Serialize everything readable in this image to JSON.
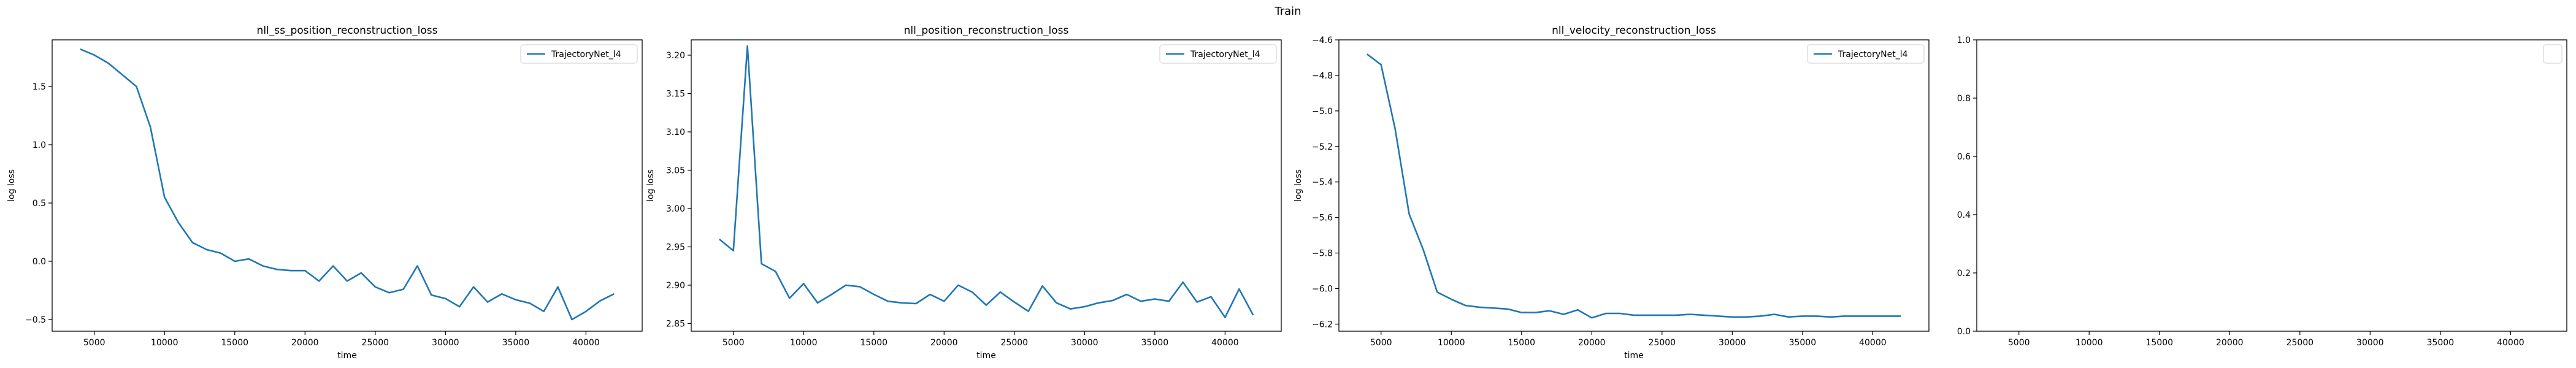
{
  "suptitle": "Train",
  "colors": {
    "series": "#1f77b4",
    "axes": "#000000",
    "legend_frame": "#cccccc"
  },
  "chart_data": [
    {
      "type": "line",
      "title": "nll_ss_position_reconstruction_loss",
      "xlabel": "time",
      "ylabel": "log loss",
      "xlim": [
        2000,
        44000
      ],
      "ylim": [
        -0.6,
        1.9
      ],
      "xticks": [
        5000,
        10000,
        15000,
        20000,
        25000,
        30000,
        35000,
        40000
      ],
      "xtick_labels": [
        "5000",
        "10000",
        "15000",
        "20000",
        "25000",
        "30000",
        "35000",
        "40000"
      ],
      "yticks": [
        -0.5,
        0.0,
        0.5,
        1.0,
        1.5
      ],
      "ytick_labels": [
        "−0.5",
        "0.0",
        "0.5",
        "1.0",
        "1.5"
      ],
      "grid": false,
      "legend_position": "top-right",
      "series": [
        {
          "name": "TrajectoryNet_l4",
          "x": [
            4000,
            5000,
            6000,
            7000,
            8000,
            9000,
            10000,
            11000,
            12000,
            13000,
            14000,
            15000,
            16000,
            17000,
            18000,
            19000,
            20000,
            21000,
            22000,
            23000,
            24000,
            25000,
            26000,
            27000,
            28000,
            29000,
            30000,
            31000,
            32000,
            33000,
            34000,
            35000,
            36000,
            37000,
            38000,
            39000,
            40000,
            41000,
            42000
          ],
          "y": [
            1.82,
            1.77,
            1.7,
            1.6,
            1.5,
            1.15,
            0.55,
            0.33,
            0.16,
            0.1,
            0.07,
            0.0,
            0.02,
            -0.04,
            -0.07,
            -0.08,
            -0.08,
            -0.17,
            -0.04,
            -0.17,
            -0.1,
            -0.22,
            -0.27,
            -0.24,
            -0.04,
            -0.29,
            -0.32,
            -0.39,
            -0.22,
            -0.35,
            -0.28,
            -0.33,
            -0.36,
            -0.43,
            -0.22,
            -0.5,
            -0.43,
            -0.34,
            -0.28
          ]
        }
      ]
    },
    {
      "type": "line",
      "title": "nll_position_reconstruction_loss",
      "xlabel": "time",
      "ylabel": "log loss",
      "xlim": [
        2000,
        44000
      ],
      "ylim": [
        2.84,
        3.22
      ],
      "xticks": [
        5000,
        10000,
        15000,
        20000,
        25000,
        30000,
        35000,
        40000
      ],
      "xtick_labels": [
        "5000",
        "10000",
        "15000",
        "20000",
        "25000",
        "30000",
        "35000",
        "40000"
      ],
      "yticks": [
        2.85,
        2.9,
        2.95,
        3.0,
        3.05,
        3.1,
        3.15,
        3.2
      ],
      "ytick_labels": [
        "2.85",
        "2.90",
        "2.95",
        "3.00",
        "3.05",
        "3.10",
        "3.15",
        "3.20"
      ],
      "grid": false,
      "legend_position": "top-right",
      "series": [
        {
          "name": "TrajectoryNet_l4",
          "x": [
            4000,
            5000,
            6000,
            7000,
            8000,
            9000,
            10000,
            11000,
            12000,
            13000,
            14000,
            15000,
            16000,
            17000,
            18000,
            19000,
            20000,
            21000,
            22000,
            23000,
            24000,
            25000,
            26000,
            27000,
            28000,
            29000,
            30000,
            31000,
            32000,
            33000,
            34000,
            35000,
            36000,
            37000,
            38000,
            39000,
            40000,
            41000,
            42000
          ],
          "y": [
            2.96,
            2.945,
            3.212,
            2.928,
            2.918,
            2.883,
            2.902,
            2.877,
            2.888,
            2.9,
            2.898,
            2.888,
            2.879,
            2.877,
            2.876,
            2.888,
            2.879,
            2.9,
            2.891,
            2.874,
            2.891,
            2.878,
            2.866,
            2.899,
            2.877,
            2.869,
            2.872,
            2.877,
            2.88,
            2.888,
            2.879,
            2.882,
            2.879,
            2.904,
            2.878,
            2.885,
            2.858,
            2.895,
            2.861
          ]
        }
      ]
    },
    {
      "type": "line",
      "title": "nll_velocity_reconstruction_loss",
      "xlabel": "time",
      "ylabel": "log loss",
      "xlim": [
        2000,
        44000
      ],
      "ylim": [
        -6.24,
        -4.6
      ],
      "xticks": [
        5000,
        10000,
        15000,
        20000,
        25000,
        30000,
        35000,
        40000
      ],
      "xtick_labels": [
        "5000",
        "10000",
        "15000",
        "20000",
        "25000",
        "30000",
        "35000",
        "40000"
      ],
      "yticks": [
        -6.2,
        -6.0,
        -5.8,
        -5.6,
        -5.4,
        -5.2,
        -5.0,
        -4.8,
        -4.6
      ],
      "ytick_labels": [
        "−6.2",
        "−6.0",
        "−5.8",
        "−5.6",
        "−5.4",
        "−5.2",
        "−5.0",
        "−4.8",
        "−4.6"
      ],
      "grid": false,
      "legend_position": "top-right",
      "series": [
        {
          "name": "TrajectoryNet_l4",
          "x": [
            4000,
            5000,
            6000,
            7000,
            8000,
            9000,
            10000,
            11000,
            12000,
            13000,
            14000,
            15000,
            16000,
            17000,
            18000,
            19000,
            20000,
            21000,
            22000,
            23000,
            24000,
            25000,
            26000,
            27000,
            28000,
            29000,
            30000,
            31000,
            32000,
            33000,
            34000,
            35000,
            36000,
            37000,
            38000,
            39000,
            40000,
            41000,
            42000
          ],
          "y": [
            -4.68,
            -4.74,
            -5.1,
            -5.58,
            -5.78,
            -6.02,
            -6.06,
            -6.095,
            -6.105,
            -6.11,
            -6.115,
            -6.135,
            -6.135,
            -6.125,
            -6.145,
            -6.12,
            -6.165,
            -6.14,
            -6.14,
            -6.15,
            -6.15,
            -6.15,
            -6.15,
            -6.145,
            -6.15,
            -6.155,
            -6.16,
            -6.16,
            -6.155,
            -6.145,
            -6.16,
            -6.155,
            -6.155,
            -6.16,
            -6.155,
            -6.155,
            -6.155,
            -6.155,
            -6.155
          ]
        }
      ]
    },
    {
      "type": "line",
      "title": "",
      "xlabel": "",
      "ylabel": "",
      "xlim": [
        2000,
        44000
      ],
      "ylim": [
        0.0,
        1.0
      ],
      "xticks": [
        5000,
        10000,
        15000,
        20000,
        25000,
        30000,
        35000,
        40000
      ],
      "xtick_labels": [
        "5000",
        "10000",
        "15000",
        "20000",
        "25000",
        "30000",
        "35000",
        "40000"
      ],
      "yticks": [
        0.0,
        0.2,
        0.4,
        0.6,
        0.8,
        1.0
      ],
      "ytick_labels": [
        "0.0",
        "0.2",
        "0.4",
        "0.6",
        "0.8",
        "1.0"
      ],
      "grid": false,
      "legend_position": "top-right",
      "series": []
    }
  ]
}
